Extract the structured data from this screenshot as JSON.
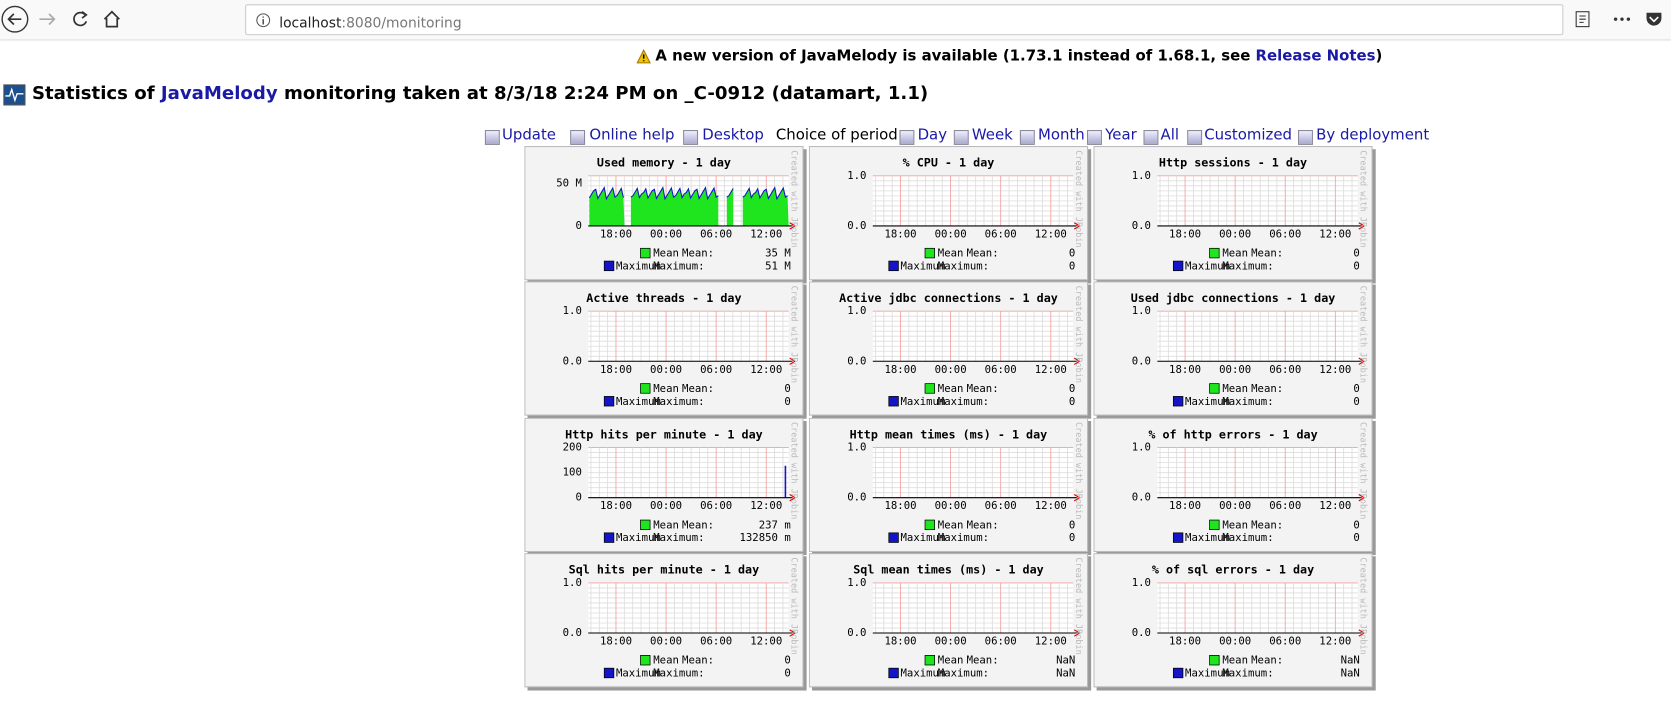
{
  "browser": {
    "url_host": "localhost",
    "url_path": ":8080/monitoring"
  },
  "notice": {
    "text": "A new version of JavaMelody is available (1.73.1 instead of 1.68.1, see ",
    "link": "Release Notes",
    "end": ")"
  },
  "heading": {
    "prefix": "Statistics of ",
    "link": "JavaMelody",
    "suffix": " monitoring taken at 8/3/18 2:24 PM on _C-0912 (datamart, 1.1)"
  },
  "toolbar": {
    "actions": [
      "Update",
      "Online help",
      "Desktop"
    ],
    "period_label": "Choice of period :",
    "periods": [
      "Day",
      "Week",
      "Month",
      "Year",
      "All",
      "Customized",
      "By deployment"
    ]
  },
  "graph_xticks": [
    "18:00",
    "00:00",
    "06:00",
    "12:00"
  ],
  "graph_watermark": "Created with JRobin",
  "graph_legend": [
    {
      "name": "Mean",
      "label": "Mean:"
    },
    {
      "name": "Maximum",
      "label": "Maximum:"
    }
  ],
  "graphs": [
    {
      "title": "Used memory - 1 day",
      "yticks": [
        "50 M",
        "0"
      ],
      "mean": "35 M",
      "maximum": "51 M"
    },
    {
      "title": "% CPU - 1 day",
      "yticks": [
        "1.0",
        "0.0"
      ],
      "mean": "0",
      "maximum": "0"
    },
    {
      "title": "Http sessions - 1 day",
      "yticks": [
        "1.0",
        "0.0"
      ],
      "mean": "0",
      "maximum": "0"
    },
    {
      "title": "Active threads - 1 day",
      "yticks": [
        "1.0",
        "0.0"
      ],
      "mean": "0",
      "maximum": "0"
    },
    {
      "title": "Active jdbc connections - 1 day",
      "yticks": [
        "1.0",
        "0.0"
      ],
      "mean": "0",
      "maximum": "0"
    },
    {
      "title": "Used jdbc connections - 1 day",
      "yticks": [
        "1.0",
        "0.0"
      ],
      "mean": "0",
      "maximum": "0"
    },
    {
      "title": "Http hits per minute - 1 day",
      "yticks": [
        "200",
        "100",
        "0"
      ],
      "mean": "237 m",
      "maximum": "132850 m"
    },
    {
      "title": "Http mean times (ms) - 1 day",
      "yticks": [
        "1.0",
        "0.0"
      ],
      "mean": "0",
      "maximum": "0"
    },
    {
      "title": "% of http errors - 1 day",
      "yticks": [
        "1.0",
        "0.0"
      ],
      "mean": "0",
      "maximum": "0"
    },
    {
      "title": "Sql hits per minute - 1 day",
      "yticks": [
        "1.0",
        "0.0"
      ],
      "mean": "0",
      "maximum": "0"
    },
    {
      "title": "Sql mean times (ms) - 1 day",
      "yticks": [
        "1.0",
        "0.0"
      ],
      "mean": "NaN",
      "maximum": "NaN"
    },
    {
      "title": "% of sql errors - 1 day",
      "yticks": [
        "1.0",
        "0.0"
      ],
      "mean": "NaN",
      "maximum": "NaN"
    }
  ]
}
